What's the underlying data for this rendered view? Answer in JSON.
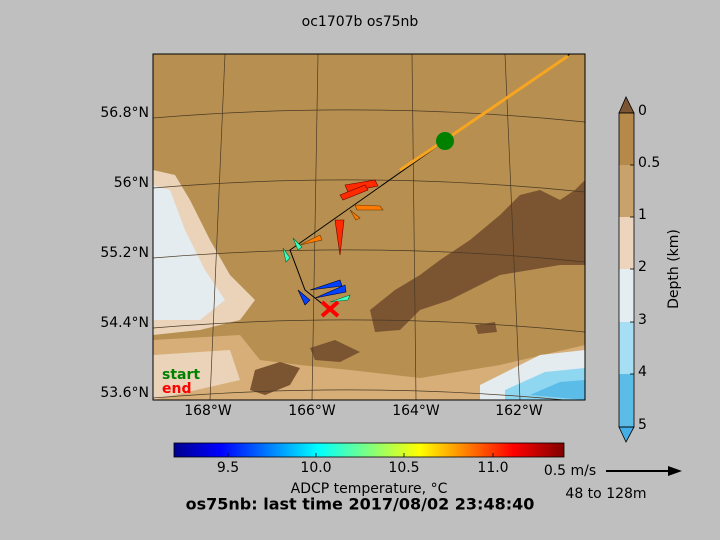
{
  "title": "oc1707b os75nb",
  "map": {
    "lat_labels": [
      "56.8°N",
      "56°N",
      "55.2°N",
      "54.4°N",
      "53.6°N"
    ],
    "lon_labels": [
      "168°W",
      "166°W",
      "164°W",
      "162°W"
    ],
    "legend": {
      "start": "start",
      "end": "end"
    }
  },
  "depth_colorbar": {
    "label": "Depth (km)",
    "ticks": [
      "0",
      "0.5",
      "1",
      "2",
      "3",
      "4",
      "5"
    ]
  },
  "temperature_colorbar": {
    "label": "ADCP temperature, °C",
    "ticks": [
      "9.5",
      "10.0",
      "10.5",
      "11.0"
    ]
  },
  "scale": {
    "speed": "0.5 m/s",
    "depth_range": "48 to 128m"
  },
  "footer": "os75nb: last time 2017/08/02 23:48:40"
}
